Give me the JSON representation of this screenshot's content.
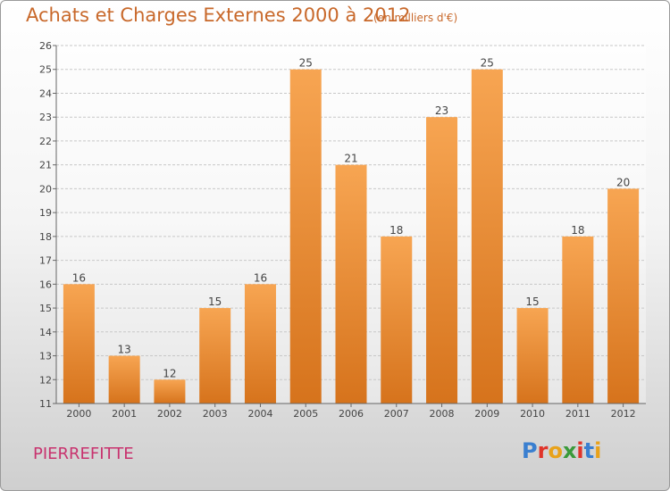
{
  "header": {
    "title": "Achats et Charges Externes 2000 à 2012",
    "unit": "(en milliers d'€)"
  },
  "footer": {
    "city": "PIERREFITTE",
    "logo": "Proxiti"
  },
  "colors": {
    "title": "#c8682a",
    "city": "#c8326e",
    "bar_light": "#f7a552",
    "bar_dark": "#d6731c",
    "logo_letters": [
      "#3a7fd0",
      "#e0342a",
      "#e8a21a",
      "#3a9a3a",
      "#e0342a",
      "#3a7fd0",
      "#e8a21a"
    ]
  },
  "chart_data": {
    "type": "bar",
    "categories": [
      "2000",
      "2001",
      "2002",
      "2003",
      "2004",
      "2005",
      "2006",
      "2007",
      "2008",
      "2009",
      "2010",
      "2011",
      "2012"
    ],
    "values": [
      16,
      13,
      12,
      15,
      16,
      25,
      21,
      18,
      23,
      25,
      15,
      18,
      20
    ],
    "title": "Achats et Charges Externes 2000 à 2012",
    "subtitle": "(en milliers d'€)",
    "ylim": [
      11,
      26
    ],
    "yticks": [
      11,
      12,
      13,
      14,
      15,
      16,
      17,
      18,
      19,
      20,
      21,
      22,
      23,
      24,
      25,
      26
    ],
    "grid": true,
    "legend": "none"
  }
}
